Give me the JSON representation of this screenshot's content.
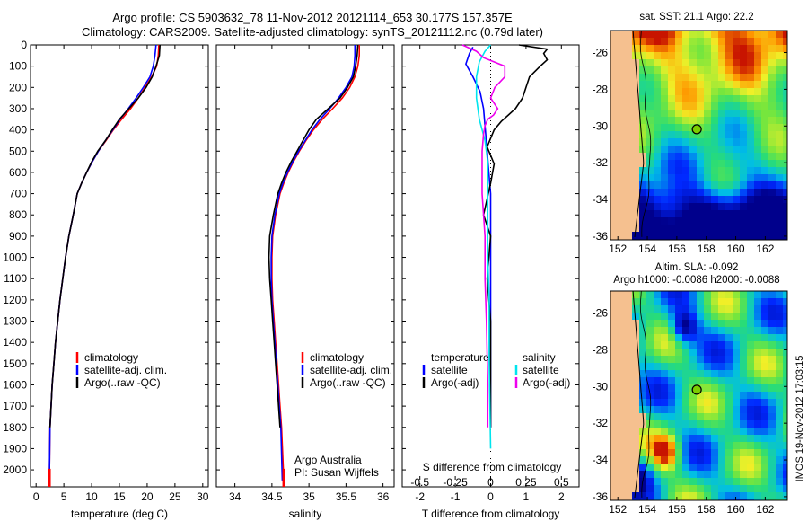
{
  "header": {
    "line1": "Argo profile: CS 5903632_78 11-Nov-2012 20121114_653 30.177S 157.357E",
    "line2": "Climatology: CARS2009. Satellite-adjusted climatology: synTS_20121112.nc (0.79d later)"
  },
  "colors": {
    "clim": "#ff0000",
    "sat": "#0000ff",
    "argo": "#000000",
    "sal_sat": "#00e5ee",
    "sal_argo": "#ee00ee",
    "land": "#f5c08f"
  },
  "chart_data": [
    {
      "id": "temperature",
      "type": "line",
      "xlabel": "temperature (deg C)",
      "xlim": [
        -1,
        31
      ],
      "xticks": [
        0,
        5,
        10,
        15,
        20,
        25,
        30
      ],
      "ylim": [
        0,
        2080
      ],
      "yticks": [
        0,
        100,
        200,
        300,
        400,
        500,
        600,
        700,
        800,
        900,
        1000,
        1100,
        1200,
        1300,
        1400,
        1500,
        1600,
        1700,
        1800,
        1900,
        2000
      ],
      "legend": [
        "climatology",
        "satellite-adj. clim.",
        "Argo(..raw -QC)"
      ],
      "series": [
        {
          "name": "climatology",
          "color": "#ff0000",
          "x": [
            22.1,
            22.0,
            21.7,
            20.8,
            19.6,
            18.4,
            17.0,
            15.4,
            13.9,
            12.6,
            11.2,
            10.1,
            9.1,
            8.2,
            7.4,
            6.7,
            5.9,
            5.3,
            4.8,
            4.3,
            3.9,
            3.5,
            3.2,
            2.9,
            2.7,
            2.5,
            2.4
          ],
          "y": [
            0,
            50,
            100,
            150,
            200,
            250,
            300,
            350,
            400,
            450,
            500,
            550,
            600,
            650,
            700,
            800,
            900,
            1000,
            1100,
            1200,
            1300,
            1400,
            1500,
            1600,
            1700,
            1800,
            2050
          ]
        },
        {
          "name": "satellite-adj. clim.",
          "color": "#0000ff",
          "x": [
            21.6,
            21.4,
            21.1,
            20.5,
            19.3,
            18.0,
            16.6,
            15.1,
            13.8,
            12.5,
            11.2,
            10.1,
            9.1,
            8.2,
            7.4,
            6.7,
            5.9,
            5.3,
            4.8,
            4.3,
            3.9,
            3.5,
            3.2,
            2.9,
            2.7,
            2.5,
            2.4
          ],
          "y": [
            0,
            50,
            100,
            150,
            200,
            250,
            300,
            350,
            400,
            450,
            500,
            550,
            600,
            650,
            700,
            800,
            900,
            1000,
            1100,
            1200,
            1300,
            1400,
            1500,
            1600,
            1700,
            1800,
            2050
          ]
        },
        {
          "name": "Argo(..raw -QC)",
          "color": "#000000",
          "x": [
            22.3,
            22.2,
            21.6,
            20.9,
            19.8,
            18.4,
            16.7,
            15.0,
            13.7,
            12.5,
            11.1,
            10.0,
            9.1,
            8.2,
            7.4,
            6.7,
            5.9,
            5.3,
            4.8,
            4.3,
            3.9,
            3.5,
            3.2,
            2.9,
            2.7,
            2.5
          ],
          "y": [
            0,
            50,
            100,
            150,
            200,
            250,
            300,
            350,
            400,
            450,
            500,
            550,
            600,
            650,
            700,
            800,
            900,
            1000,
            1100,
            1200,
            1300,
            1400,
            1500,
            1600,
            1700,
            1800
          ]
        }
      ]
    },
    {
      "id": "salinity",
      "type": "line",
      "xlabel": "salinity",
      "xlim": [
        33.75,
        36.15
      ],
      "xticks": [
        34,
        34.5,
        35,
        35.5,
        36
      ],
      "ylim": [
        0,
        2080
      ],
      "legend": [
        "climatology",
        "satellite-adj. clim.",
        "Argo(..raw -QC)"
      ],
      "annotation": [
        "Argo Australia",
        "PI: Susan Wijffels"
      ],
      "series": [
        {
          "name": "climatology",
          "color": "#ff0000",
          "x": [
            35.68,
            35.68,
            35.66,
            35.62,
            35.55,
            35.45,
            35.32,
            35.18,
            35.06,
            34.96,
            34.87,
            34.79,
            34.72,
            34.66,
            34.61,
            34.55,
            34.51,
            34.5,
            34.5,
            34.51,
            34.53,
            34.55,
            34.57,
            34.59,
            34.61,
            34.63,
            34.66
          ],
          "y": [
            0,
            50,
            100,
            150,
            200,
            250,
            300,
            350,
            400,
            450,
            500,
            550,
            600,
            650,
            700,
            800,
            900,
            1000,
            1100,
            1200,
            1300,
            1400,
            1500,
            1600,
            1700,
            1800,
            2050
          ]
        },
        {
          "name": "satellite-adj. clim.",
          "color": "#0000ff",
          "x": [
            35.62,
            35.62,
            35.61,
            35.58,
            35.5,
            35.4,
            35.28,
            35.15,
            35.04,
            34.95,
            34.86,
            34.78,
            34.71,
            34.65,
            34.6,
            34.54,
            34.5,
            34.49,
            34.49,
            34.5,
            34.52,
            34.54,
            34.56,
            34.58,
            34.6,
            34.62,
            34.64
          ],
          "y": [
            0,
            50,
            100,
            150,
            200,
            250,
            300,
            350,
            400,
            450,
            500,
            550,
            600,
            650,
            700,
            800,
            900,
            1000,
            1100,
            1200,
            1300,
            1400,
            1500,
            1600,
            1700,
            1800,
            2050
          ]
        },
        {
          "name": "Argo(..raw -QC)",
          "color": "#000000",
          "x": [
            35.66,
            35.65,
            35.63,
            35.6,
            35.52,
            35.42,
            35.26,
            35.1,
            35.0,
            34.92,
            34.84,
            34.76,
            34.69,
            34.63,
            34.58,
            34.52,
            34.47,
            34.46,
            34.47,
            34.49,
            34.51,
            34.53,
            34.55,
            34.57,
            34.59,
            34.61
          ],
          "y": [
            0,
            50,
            100,
            150,
            200,
            250,
            300,
            350,
            400,
            450,
            500,
            550,
            600,
            650,
            700,
            800,
            900,
            1000,
            1100,
            1200,
            1300,
            1400,
            1500,
            1600,
            1700,
            1800
          ]
        }
      ]
    },
    {
      "id": "difference",
      "type": "line",
      "xlabel": "T difference from climatology",
      "xlabel_top": "S difference from climatology",
      "xlim": [
        -2.5,
        2.5
      ],
      "xticks": [
        -2,
        -1,
        0,
        1,
        2
      ],
      "s_ticks": [
        -0.5,
        -0.25,
        0,
        0.25,
        0.5
      ],
      "s_tick_labels": [
        "-0.5",
        "-0.25",
        "0",
        "0.25",
        "0.5"
      ],
      "ylim": [
        0,
        2080
      ],
      "legend_titles": [
        "temperature",
        "salinity"
      ],
      "legend_left": [
        "satellite",
        "Argo(-adj)"
      ],
      "legend_right": [
        "satellite",
        "Argo(-adj)"
      ],
      "series": [
        {
          "name": "temperature satellite",
          "color": "#0000ff",
          "x": [
            -0.5,
            -0.6,
            -0.7,
            -0.5,
            -0.3,
            -0.2,
            -0.15,
            -0.1,
            -0.05,
            0,
            0,
            0,
            0,
            0,
            0
          ],
          "y": [
            10,
            40,
            90,
            150,
            220,
            300,
            400,
            500,
            600,
            700,
            900,
            1100,
            1300,
            1600,
            1800
          ]
        },
        {
          "name": "temperature Argo(-adj)",
          "color": "#000000",
          "x": [
            0.8,
            1.6,
            1.5,
            1.6,
            1.4,
            1.1,
            1.0,
            0.9,
            0.7,
            0.5,
            0.3,
            0.1,
            -0.1,
            0.1,
            0,
            -0.2,
            0,
            -0.1,
            0,
            0,
            0
          ],
          "y": [
            0,
            20,
            40,
            70,
            100,
            150,
            200,
            250,
            300,
            330,
            360,
            400,
            480,
            560,
            650,
            800,
            900,
            1100,
            1300,
            1600,
            1800
          ]
        },
        {
          "name": "salinity satellite",
          "color": "#00e5ee",
          "x": [
            0.0,
            -0.04,
            -0.08,
            -0.1,
            -0.1,
            -0.08,
            -0.04,
            -0.02,
            -0.02,
            -0.02,
            -0.02,
            -0.01,
            -0.01,
            0
          ],
          "y": [
            0,
            30,
            80,
            150,
            250,
            350,
            450,
            550,
            700,
            800,
            1000,
            1200,
            1500,
            1900
          ]
        },
        {
          "name": "salinity Argo(-adj)",
          "color": "#ee00ee",
          "x": [
            -0.2,
            -0.1,
            -0.05,
            0.1,
            0.1,
            0.03,
            0,
            0.05,
            0.02,
            -0.02,
            -0.04,
            -0.05,
            -0.06,
            -0.06,
            -0.06,
            -0.05,
            -0.04,
            -0.04,
            -0.03,
            -0.02,
            -0.02
          ],
          "y": [
            0,
            30,
            60,
            100,
            150,
            200,
            250,
            300,
            330,
            350,
            380,
            420,
            500,
            600,
            700,
            800,
            900,
            1100,
            1300,
            1600,
            1800
          ]
        }
      ]
    },
    {
      "id": "sst-map",
      "type": "heatmap",
      "title": "sat. SST: 21.1 Argo: 22.2",
      "xlim": [
        151.5,
        163.5
      ],
      "ylim": [
        -36.2,
        -24.8
      ],
      "xticks": [
        152,
        154,
        156,
        158,
        160,
        162
      ],
      "yticks": [
        -26,
        -28,
        -30,
        -32,
        -34,
        -36
      ],
      "argo_position": [
        157.357,
        -30.177
      ]
    },
    {
      "id": "sla-map",
      "type": "heatmap",
      "title_line1": "Altim. SLA: -0.092",
      "title_line2": "Argo h1000: -0.0086 h2000: -0.0088",
      "xlim": [
        151.5,
        163.5
      ],
      "ylim": [
        -36.2,
        -24.8
      ],
      "xticks": [
        152,
        154,
        156,
        158,
        160,
        162
      ],
      "yticks": [
        -26,
        -28,
        -30,
        -32,
        -34,
        -36
      ],
      "argo_position": [
        157.357,
        -30.177
      ]
    }
  ],
  "footer_stamp": "IMOS 19-Nov-2012 17:03:15"
}
